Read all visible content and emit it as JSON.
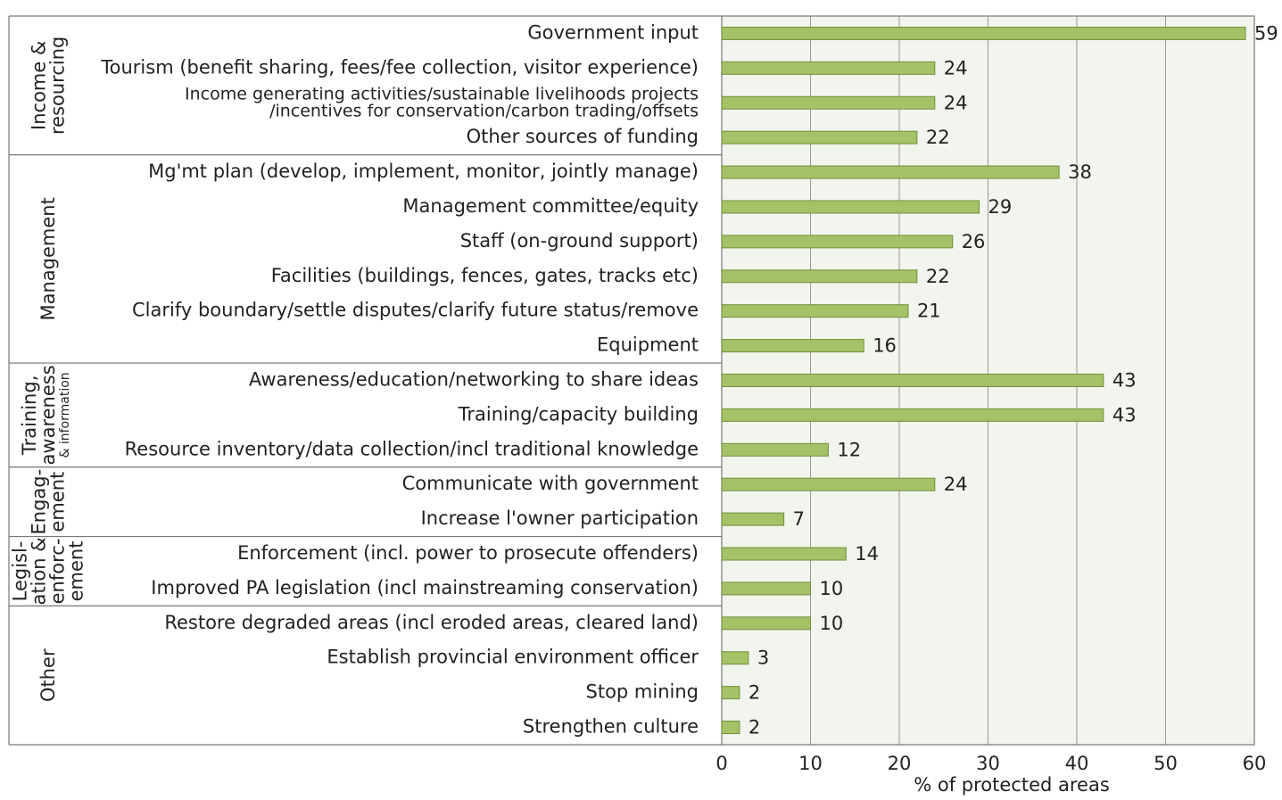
{
  "chart_data": {
    "type": "bar",
    "orientation": "horizontal",
    "x_label": "% of protected areas",
    "xlim": [
      0,
      60
    ],
    "xticks": [
      0,
      10,
      20,
      30,
      40,
      50,
      60
    ],
    "grid": true,
    "color": "#a6c266",
    "edge_color": "#6f8f3a",
    "background": "#f2f5ee",
    "groups": [
      {
        "label": [
          "Income &",
          "resourcing"
        ],
        "categories": [
          "Government input",
          "Tourism (benefit sharing, fees/fee collection, visitor experience)",
          [
            "Income generating activities/sustainable livelihoods projects",
            "/incentives for conservation/carbon trading/offsets"
          ],
          "Other sources of funding"
        ],
        "values": [
          59,
          24,
          24,
          22
        ]
      },
      {
        "label": [
          "Management"
        ],
        "categories": [
          "Mg'mt plan (develop, implement, monitor, jointly manage)",
          "Management committee/equity",
          "Staff (on-ground support)",
          "Facilities (buildings, fences, gates, tracks etc)",
          "Clarify boundary/settle disputes/clarify future status/remove",
          "Equipment"
        ],
        "values": [
          38,
          29,
          26,
          22,
          21,
          16
        ]
      },
      {
        "label": [
          "Training,",
          "awareness",
          "& information"
        ],
        "categories": [
          "Awareness/education/networking to share ideas",
          "Training/capacity building",
          "Resource inventory/data collection/incl traditional knowledge"
        ],
        "values": [
          43,
          43,
          12
        ]
      },
      {
        "label": [
          "Engag-",
          "ement"
        ],
        "categories": [
          "Communicate with government",
          "Increase l'owner participation"
        ],
        "values": [
          24,
          7
        ]
      },
      {
        "label": [
          "Legisl-",
          "ation &",
          "enforc-",
          "ement"
        ],
        "categories": [
          "Enforcement (incl. power to prosecute offenders)",
          "Improved PA legislation (incl mainstreaming conservation)"
        ],
        "values": [
          14,
          10
        ]
      },
      {
        "label": [
          "Other"
        ],
        "categories": [
          "Restore degraded areas (incl eroded areas, cleared land)",
          "Establish provincial environment officer",
          "Stop mining",
          "Strengthen culture"
        ],
        "values": [
          10,
          3,
          2,
          2
        ]
      }
    ]
  }
}
